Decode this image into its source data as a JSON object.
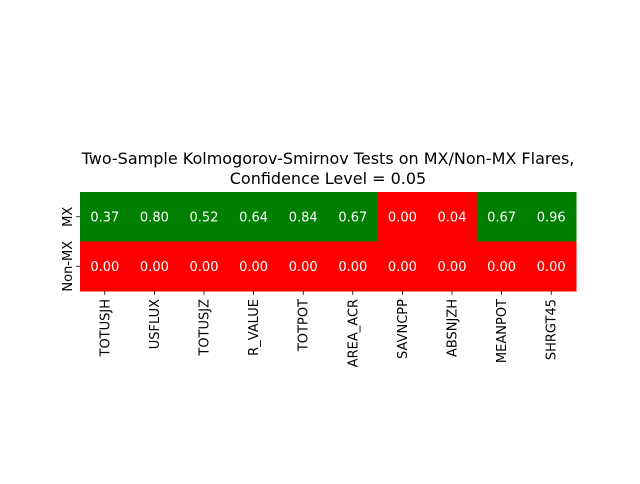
{
  "chart_data": {
    "type": "heatmap",
    "title_line1": "Two-Sample Kolmogorov-Smirnov Tests on MX/Non-MX Flares,",
    "title_line2": "Confidence Level = 0.05",
    "rows": [
      "MX",
      "Non-MX"
    ],
    "columns": [
      "TOTUSJH",
      "USFLUX",
      "TOTUSJZ",
      "R_VALUE",
      "TOTPOT",
      "AREA_ACR",
      "SAVNCPP",
      "ABSNJZH",
      "MEANPOT",
      "SHRGT45"
    ],
    "values": [
      [
        0.37,
        0.8,
        0.52,
        0.64,
        0.84,
        0.67,
        0.0,
        0.04,
        0.67,
        0.96
      ],
      [
        0.0,
        0.0,
        0.0,
        0.0,
        0.0,
        0.0,
        0.0,
        0.0,
        0.0,
        0.0
      ]
    ],
    "threshold": 0.05,
    "colors": {
      "above_threshold": "#008000",
      "below_threshold": "#ff0000",
      "annotation_text": "#ffffff"
    },
    "colorbar": false
  }
}
